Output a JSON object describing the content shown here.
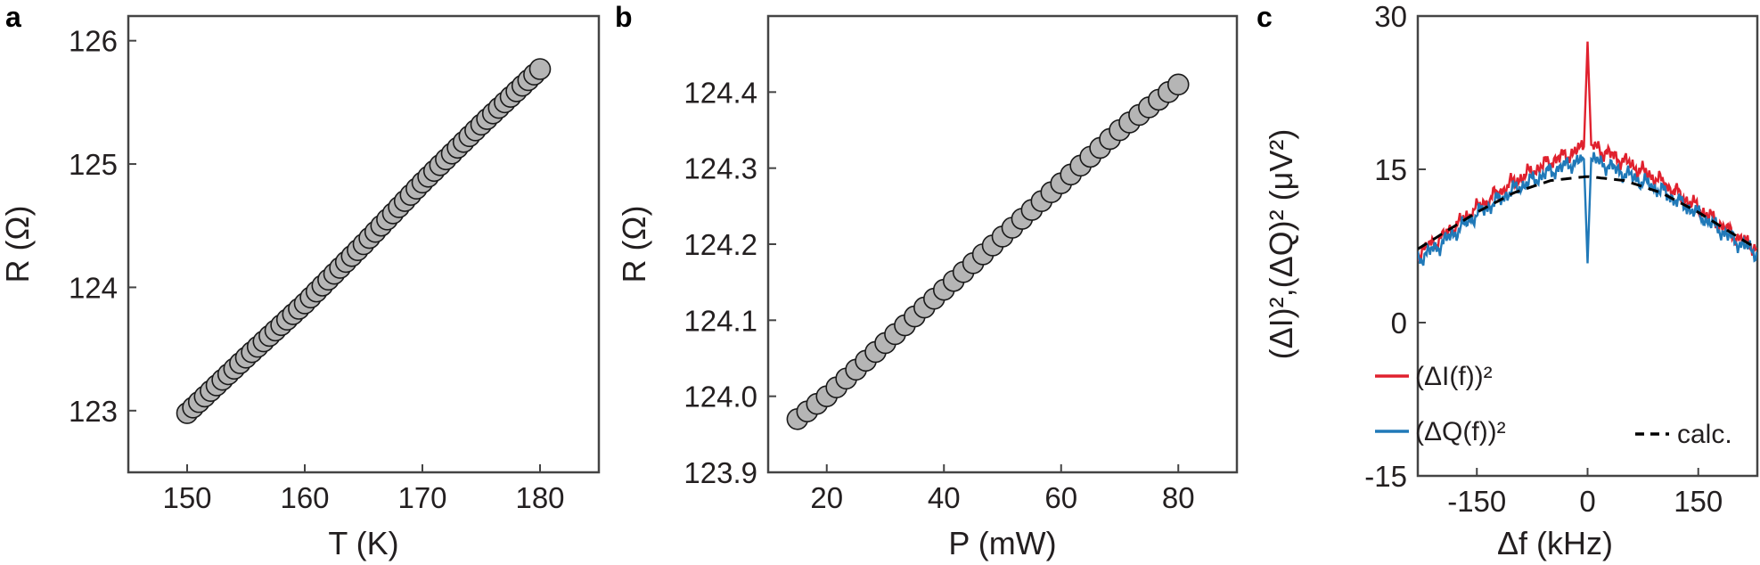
{
  "figure": {
    "panels": [
      {
        "letter": "a",
        "xlabel": "T (K)",
        "ylabel": "R (Ω)"
      },
      {
        "letter": "b",
        "xlabel": "P (mW)",
        "ylabel": "R (Ω)"
      },
      {
        "letter": "c",
        "xlabel": "Δf (kHz)",
        "ylabel": "(ΔI)²,(ΔQ)² (μV²)"
      }
    ]
  },
  "chart_data": [
    {
      "type": "scatter",
      "panel": "a",
      "xlabel": "T (K)",
      "ylabel": "R (Ω)",
      "xlim": [
        145,
        185
      ],
      "ylim": [
        122.5,
        126.2
      ],
      "xticks": [
        150,
        160,
        170,
        180
      ],
      "yticks": [
        123,
        124,
        125,
        126
      ],
      "grid": false,
      "marker_color": "#b5b5b5",
      "x_start": 150,
      "x_end": 180,
      "n_points": 61,
      "x": [
        150,
        155,
        160,
        165,
        170,
        175,
        180
      ],
      "y": [
        122.98,
        123.43,
        123.87,
        124.35,
        124.85,
        125.32,
        125.77
      ]
    },
    {
      "type": "scatter",
      "panel": "b",
      "xlabel": "P (mW)",
      "ylabel": "R (Ω)",
      "xlim": [
        10,
        90
      ],
      "ylim": [
        123.9,
        124.5
      ],
      "xticks": [
        20,
        40,
        60,
        80
      ],
      "ytick_labels": [
        "123.9",
        "124.0",
        "124.1",
        "124.2",
        "124.3",
        "124.4"
      ],
      "grid": false,
      "marker_color": "#b5b5b5",
      "x_start": 15,
      "x_end": 80,
      "n_points": 40,
      "x": [
        15,
        20,
        30,
        40,
        50,
        60,
        70,
        80
      ],
      "y": [
        123.97,
        124.0,
        124.07,
        124.14,
        124.21,
        124.28,
        124.35,
        124.41
      ]
    },
    {
      "type": "line",
      "panel": "c",
      "xlabel": "Δf (kHz)",
      "ylabel": "(ΔI)²,(ΔQ)² (μV²)",
      "xlim": [
        -230,
        230
      ],
      "ylim": [
        -15,
        30
      ],
      "xticks": [
        -150,
        0,
        150
      ],
      "yticks": [
        -15,
        0,
        15,
        30
      ],
      "grid": false,
      "legend_position": "bottom",
      "series": [
        {
          "name": "(ΔI(f))²",
          "color": "#e0212e",
          "style": "solid",
          "x": [
            -230,
            -200,
            -150,
            -100,
            -50,
            -20,
            -5,
            0,
            5,
            20,
            50,
            100,
            150,
            200,
            230
          ],
          "y": [
            6.8,
            8.2,
            11.2,
            13.8,
            15.8,
            16.6,
            17.2,
            27.5,
            17.4,
            16.8,
            15.8,
            13.8,
            11.2,
            8.5,
            7.2
          ]
        },
        {
          "name": "(ΔQ(f))²",
          "color": "#2079b8",
          "style": "solid",
          "x": [
            -230,
            -200,
            -150,
            -100,
            -50,
            -20,
            -5,
            0,
            5,
            20,
            50,
            100,
            150,
            200,
            230
          ],
          "y": [
            6.2,
            7.6,
            10.6,
            13.0,
            14.8,
            15.6,
            16.0,
            5.8,
            16.0,
            15.6,
            14.6,
            12.9,
            10.6,
            8.0,
            6.8
          ]
        },
        {
          "name": "calc.",
          "color": "#000000",
          "style": "dashed",
          "x": [
            -230,
            -150,
            -100,
            -50,
            0,
            50,
            100,
            150,
            230
          ],
          "y": [
            7.2,
            10.8,
            12.7,
            13.9,
            14.3,
            13.9,
            12.7,
            10.8,
            7.2
          ]
        }
      ]
    }
  ]
}
